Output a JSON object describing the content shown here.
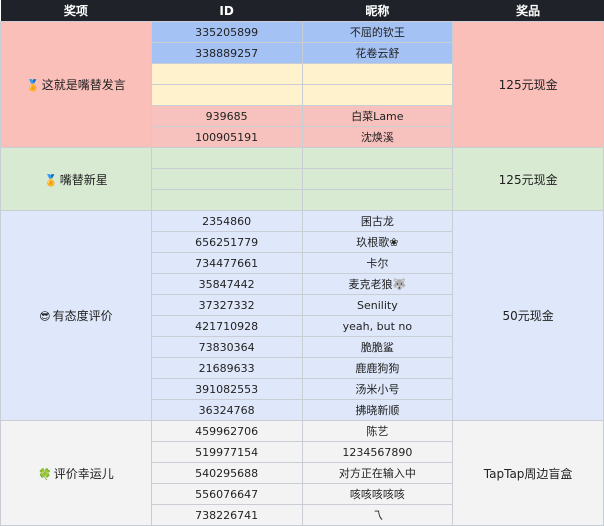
{
  "headers": [
    "奖项",
    "ID",
    "昵称",
    "奖品"
  ],
  "groups": [
    {
      "award": "这就是嘴替发言",
      "icon": "medal-icon",
      "icon_glyph": "🏅",
      "prize": "125元现金",
      "bg": "#fbbfba",
      "rows": [
        {
          "id": "335205899",
          "name": "不屈的钦王",
          "bg": "#a4c2f4"
        },
        {
          "id": "338889257",
          "name": "花卷云舒",
          "bg": "#a4c2f4"
        },
        {
          "id": "",
          "name": "",
          "bg": "#fff2cc"
        },
        {
          "id": "",
          "name": "",
          "bg": "#fff2cc"
        },
        {
          "id": "939685",
          "name": "白菜Lame",
          "bg": "#f7c1bd"
        },
        {
          "id": "100905191",
          "name": "沈焕溪",
          "bg": "#f7c1bd"
        }
      ]
    },
    {
      "award": "嘴替新星",
      "icon": "medal-icon",
      "icon_glyph": "🏅",
      "prize": "125元现金",
      "bg": "#d9ead3",
      "rows": [
        {
          "id": "",
          "name": "",
          "bg": "#d9ead3"
        },
        {
          "id": "",
          "name": "",
          "bg": "#d9ead3"
        },
        {
          "id": "",
          "name": "",
          "bg": "#d9ead3"
        }
      ]
    },
    {
      "award": "有态度评价",
      "icon": "sunglasses-emoji-icon",
      "icon_glyph": "😎",
      "prize": "50元现金",
      "bg": "#dfe8fa",
      "rows": [
        {
          "id": "2354860",
          "name": "囷古龙",
          "bg": "#dfe8fa"
        },
        {
          "id": "656251779",
          "name": "玖根歌❀",
          "bg": "#dfe8fa"
        },
        {
          "id": "734477661",
          "name": "卡尔",
          "bg": "#dfe8fa"
        },
        {
          "id": "35847442",
          "name": "麦克老狼🐺",
          "bg": "#dfe8fa"
        },
        {
          "id": "37327332",
          "name": "Senility",
          "bg": "#dfe8fa"
        },
        {
          "id": "421710928",
          "name": "yeah, but no",
          "bg": "#dfe8fa"
        },
        {
          "id": "73830364",
          "name": "脆脆鲨",
          "bg": "#dfe8fa"
        },
        {
          "id": "21689633",
          "name": "鹿鹿狗狗",
          "bg": "#dfe8fa"
        },
        {
          "id": "391082553",
          "name": "汤米小号",
          "bg": "#dfe8fa"
        },
        {
          "id": "36324768",
          "name": "拂晓新顺",
          "bg": "#dfe8fa"
        }
      ]
    },
    {
      "award": "评价幸运儿",
      "icon": "four-leaf-clover-icon",
      "icon_glyph": "🍀",
      "prize": "TapTap周边盲盒",
      "bg": "#f3f3f3",
      "rows": [
        {
          "id": "459962706",
          "name": "陈艺",
          "bg": "#f3f3f3"
        },
        {
          "id": "519977154",
          "name": "1234567890",
          "bg": "#f3f3f3"
        },
        {
          "id": "540295688",
          "name": "对方正在输入中",
          "bg": "#f3f3f3"
        },
        {
          "id": "556076647",
          "name": "咳咳咳咳咳",
          "bg": "#f3f3f3"
        },
        {
          "id": "738226741",
          "name": "乁",
          "bg": "#f3f3f3"
        }
      ]
    }
  ]
}
